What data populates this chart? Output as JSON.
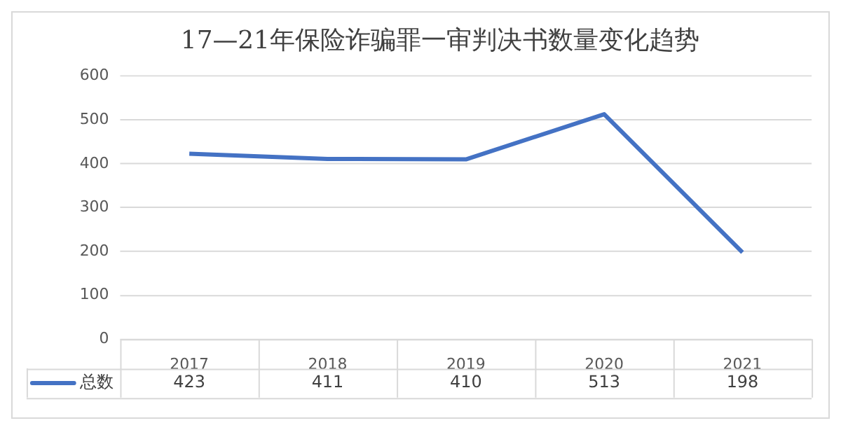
{
  "chart_data": {
    "type": "line",
    "title": "17—21年保险诈骗罪一审判决书数量变化趋势",
    "categories": [
      "2017",
      "2018",
      "2019",
      "2020",
      "2021"
    ],
    "series": [
      {
        "name": "总数",
        "color": "#4472c4",
        "values": [
          423,
          411,
          410,
          513,
          198
        ]
      }
    ],
    "ylim": [
      0,
      600
    ],
    "yticks": [
      0,
      100,
      200,
      300,
      400,
      500,
      600
    ],
    "grid": "y",
    "legend": "bottom",
    "data_labels": true,
    "marker": "none"
  }
}
